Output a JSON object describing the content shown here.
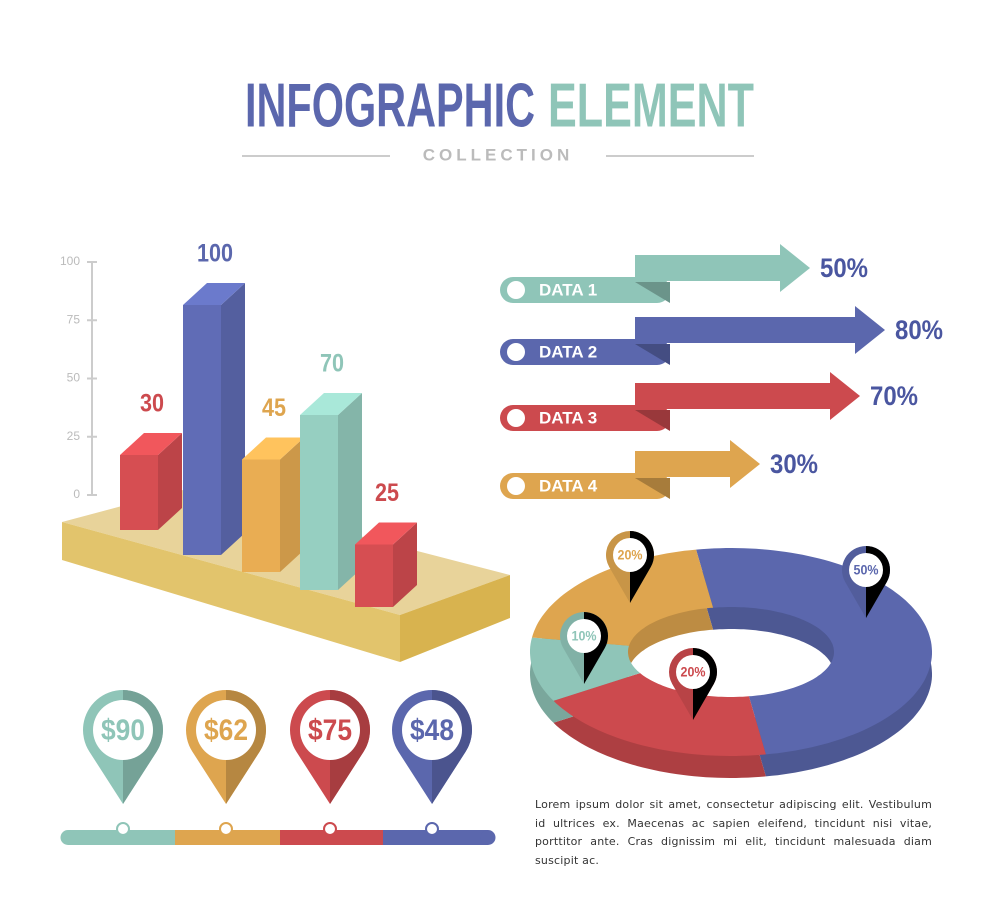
{
  "header": {
    "title_left": "INFOGRAPHIC",
    "title_right": "ELEMENT",
    "subtitle": "COLLECTION"
  },
  "chart_data": [
    {
      "type": "bar",
      "values": [
        30,
        100,
        45,
        70,
        25
      ],
      "colors": [
        "#cc4a4e",
        "#5b67ad",
        "#dea54f",
        "#8fc5b8",
        "#cc4a4e"
      ],
      "ylim": [
        0,
        100
      ],
      "yticks": [
        0,
        25,
        50,
        75,
        100
      ]
    },
    {
      "type": "arrow",
      "categories": [
        "DATA 1",
        "DATA 2",
        "DATA 3",
        "DATA 4"
      ],
      "values": [
        50,
        80,
        70,
        30
      ],
      "value_labels": [
        "50%",
        "80%",
        "70%",
        "30%"
      ],
      "colors": [
        "#8fc5b8",
        "#5b67ad",
        "#cc4a4e",
        "#dea54f"
      ]
    },
    {
      "type": "donut",
      "values": [
        50,
        20,
        10,
        20
      ],
      "value_labels": [
        "50%",
        "20%",
        "10%",
        "20%"
      ],
      "colors": [
        "#5b67ad",
        "#cc4a4e",
        "#8fc5b8",
        "#dea54f"
      ]
    },
    {
      "type": "pin",
      "values": [
        90,
        62,
        75,
        48
      ],
      "value_labels": [
        "$90",
        "$62",
        "$75",
        "$48"
      ],
      "colors": [
        "#8fc5b8",
        "#dea54f",
        "#cc4a4e",
        "#5b67ad"
      ]
    }
  ],
  "text": "Lorem ipsum dolor sit amet, consectetur adipiscing elit. Vestibulum id ultrices ex. Maecenas ac sapien eleifend, tincidunt nisi vitae, porttitor ante. Cras dignissim mi elit, tincidunt malesuada diam suscipit ac."
}
